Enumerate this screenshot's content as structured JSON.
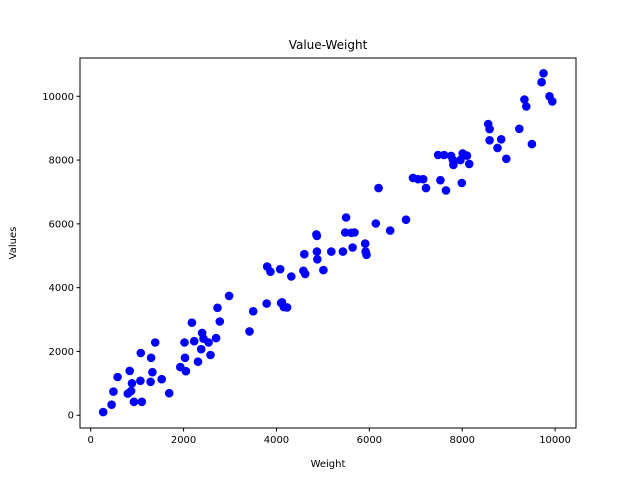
{
  "chart_data": {
    "type": "scatter",
    "title": "Value-Weight",
    "xlabel": "Weight",
    "ylabel": "Values",
    "xlim": [
      -230,
      10450
    ],
    "ylim": [
      -400,
      11200
    ],
    "xticks": [
      0,
      2000,
      4000,
      6000,
      8000,
      10000
    ],
    "yticks": [
      0,
      2000,
      4000,
      6000,
      8000,
      10000
    ],
    "grid": false,
    "marker_color": "#0000ff",
    "series": [
      {
        "points": [
          [
            270,
            100
          ],
          [
            450,
            330
          ],
          [
            490,
            740
          ],
          [
            580,
            1200
          ],
          [
            800,
            680
          ],
          [
            840,
            1390
          ],
          [
            870,
            760
          ],
          [
            890,
            1000
          ],
          [
            930,
            420
          ],
          [
            1070,
            1080
          ],
          [
            1080,
            1950
          ],
          [
            1100,
            420
          ],
          [
            1290,
            1050
          ],
          [
            1300,
            1800
          ],
          [
            1330,
            1350
          ],
          [
            1390,
            2280
          ],
          [
            1530,
            1130
          ],
          [
            1690,
            690
          ],
          [
            1930,
            1510
          ],
          [
            2020,
            2280
          ],
          [
            2030,
            1800
          ],
          [
            2050,
            1380
          ],
          [
            2180,
            2900
          ],
          [
            2230,
            2320
          ],
          [
            2310,
            1680
          ],
          [
            2380,
            2070
          ],
          [
            2400,
            2580
          ],
          [
            2430,
            2400
          ],
          [
            2540,
            2280
          ],
          [
            2580,
            1890
          ],
          [
            2700,
            2420
          ],
          [
            2730,
            3370
          ],
          [
            2780,
            2940
          ],
          [
            2980,
            3740
          ],
          [
            3420,
            2630
          ],
          [
            3500,
            3260
          ],
          [
            3790,
            3500
          ],
          [
            3800,
            4660
          ],
          [
            3870,
            4500
          ],
          [
            4080,
            4580
          ],
          [
            4100,
            3520
          ],
          [
            4120,
            3540
          ],
          [
            4160,
            3390
          ],
          [
            4230,
            3380
          ],
          [
            4320,
            4350
          ],
          [
            4580,
            4530
          ],
          [
            4600,
            5050
          ],
          [
            4620,
            4430
          ],
          [
            4860,
            5670
          ],
          [
            4870,
            5620
          ],
          [
            4870,
            5130
          ],
          [
            4880,
            4890
          ],
          [
            5010,
            4550
          ],
          [
            5180,
            5130
          ],
          [
            5430,
            5130
          ],
          [
            5480,
            5730
          ],
          [
            5500,
            6200
          ],
          [
            5610,
            5720
          ],
          [
            5640,
            5260
          ],
          [
            5680,
            5730
          ],
          [
            5910,
            5380
          ],
          [
            5920,
            5130
          ],
          [
            5940,
            5030
          ],
          [
            6140,
            6010
          ],
          [
            6200,
            7120
          ],
          [
            6450,
            5790
          ],
          [
            6790,
            6130
          ],
          [
            6940,
            7440
          ],
          [
            7050,
            7400
          ],
          [
            7160,
            7400
          ],
          [
            7220,
            7120
          ],
          [
            7480,
            8160
          ],
          [
            7530,
            7370
          ],
          [
            7610,
            8160
          ],
          [
            7650,
            7050
          ],
          [
            7760,
            8130
          ],
          [
            7800,
            8000
          ],
          [
            7810,
            7850
          ],
          [
            7960,
            8000
          ],
          [
            7990,
            7280
          ],
          [
            8010,
            8210
          ],
          [
            8100,
            8140
          ],
          [
            8150,
            7880
          ],
          [
            8560,
            9130
          ],
          [
            8590,
            8970
          ],
          [
            8590,
            8620
          ],
          [
            8760,
            8380
          ],
          [
            8840,
            8650
          ],
          [
            8950,
            8040
          ],
          [
            9230,
            8980
          ],
          [
            9340,
            9900
          ],
          [
            9380,
            9680
          ],
          [
            9500,
            8500
          ],
          [
            9710,
            10440
          ],
          [
            9750,
            10720
          ],
          [
            9880,
            10000
          ],
          [
            9940,
            9840
          ]
        ]
      }
    ]
  }
}
